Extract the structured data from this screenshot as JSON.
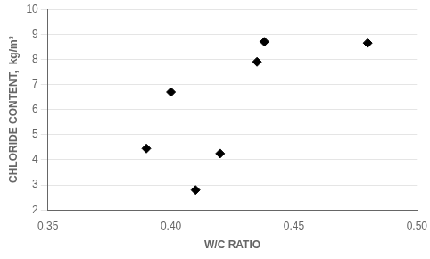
{
  "chart_data": {
    "type": "scatter",
    "xlabel": "W/C RATIO",
    "ylabel": "CHLORIDE CONTENT,  kg/m³",
    "x": [
      0.39,
      0.4,
      0.41,
      0.42,
      0.435,
      0.438,
      0.48
    ],
    "values": [
      4.45,
      6.7,
      2.8,
      4.25,
      7.9,
      8.7,
      8.65
    ],
    "color": "#000000",
    "marker": "diamond",
    "xlim": [
      0.35,
      0.5
    ],
    "ylim": [
      2,
      10
    ],
    "xticks": [
      0.35,
      {
        "value": 0.4,
        "label": "0.40"
      },
      0.45,
      {
        "value": 0.5,
        "label": "0.50"
      }
    ],
    "yticks": [
      2,
      3,
      4,
      5,
      6,
      7,
      8,
      9,
      10
    ],
    "grid": "y"
  }
}
